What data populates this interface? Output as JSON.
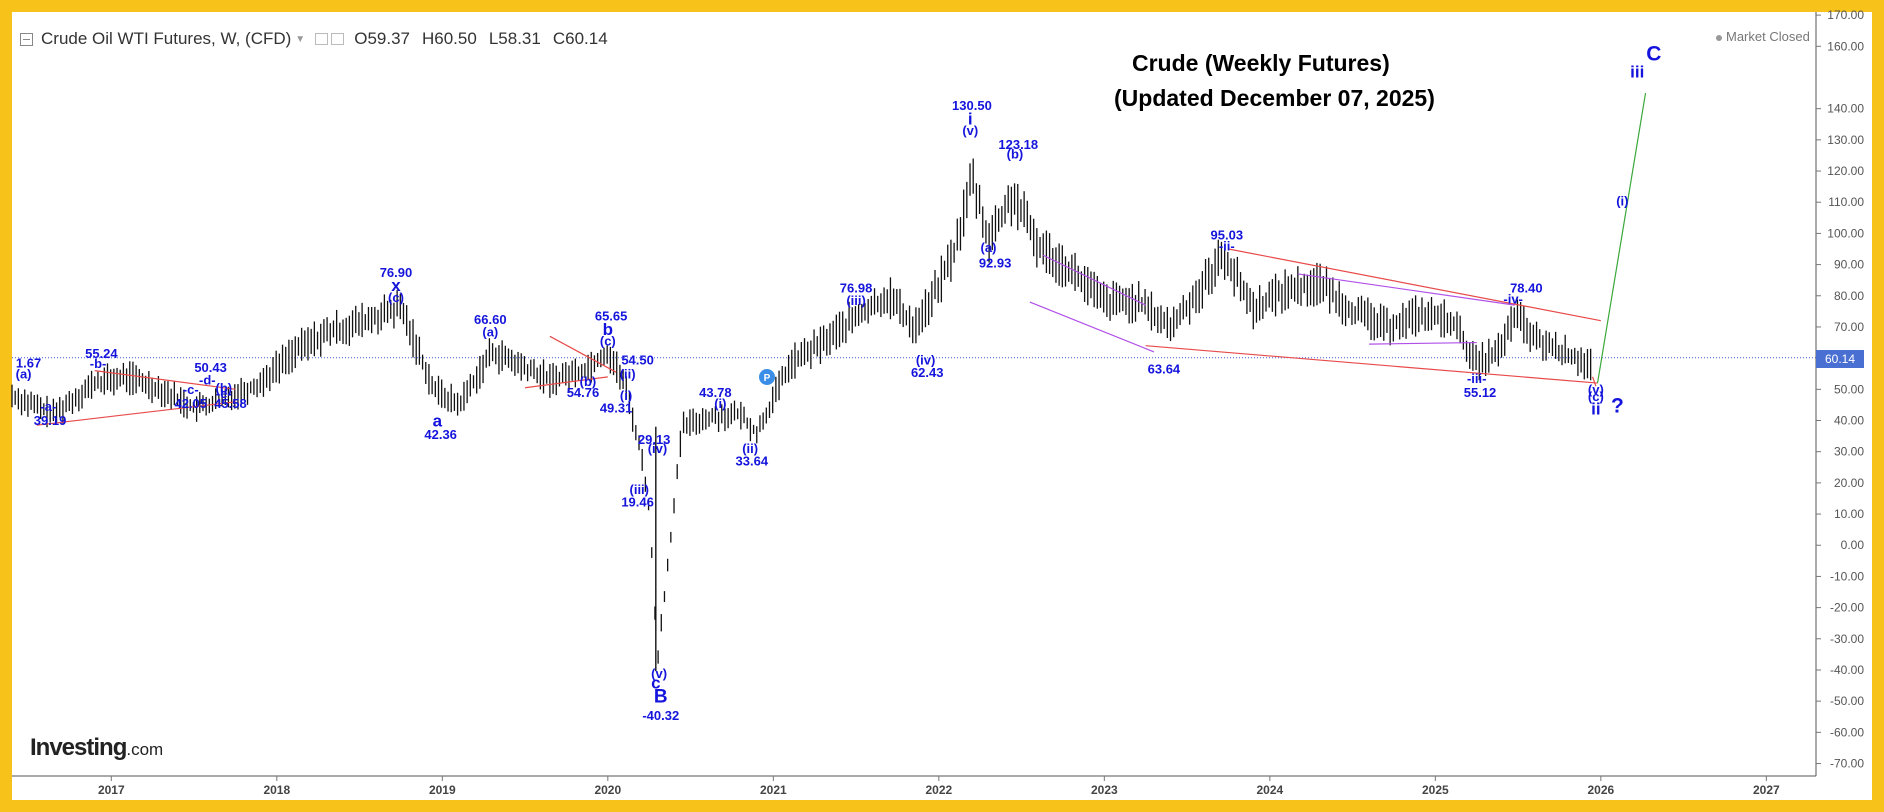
{
  "header": {
    "instrument": "Crude Oil WTI Futures, W, (CFD)",
    "open_label": "O",
    "open_value": "59.37",
    "high_label": "H",
    "high_value": "60.50",
    "low_label": "L",
    "low_value": "58.31",
    "close_label": "C",
    "close_value": "60.14",
    "market_status": "Market Closed"
  },
  "logo": {
    "brand": "Investing",
    "suffix": ".com"
  },
  "colors": {
    "frame": "#f7c21a",
    "wave_label": "#1414dc",
    "trendline": "#e84a4a",
    "channel": "#b050e8",
    "projection": "#3aa83a",
    "price_line": "#3b5bdb"
  },
  "current_price": "60.14",
  "chart_data": {
    "type": "line",
    "title": "Crude (Weekly Futures)",
    "subtitle": "(Updated December 07, 2025)",
    "xlabel": "",
    "ylabel": "",
    "xlim": [
      2016.4,
      2027.3
    ],
    "ylim": [
      -74,
      171
    ],
    "x_ticks": [
      "2017",
      "2018",
      "2019",
      "2020",
      "2021",
      "2022",
      "2023",
      "2024",
      "2025",
      "2026",
      "2027"
    ],
    "x_tick_values": [
      2017,
      2018,
      2019,
      2020,
      2021,
      2022,
      2023,
      2024,
      2025,
      2026,
      2027
    ],
    "y_ticks": [
      170,
      160,
      140,
      130,
      120,
      110,
      100,
      90,
      80,
      70,
      60,
      50,
      40,
      30,
      20,
      10,
      0,
      -10,
      -20,
      -30,
      -40,
      -50,
      -60,
      -70
    ],
    "y_tick_labels": [
      "170.00",
      "160.00",
      "140.00",
      "130.00",
      "120.00",
      "110.00",
      "100.00",
      "90.00",
      "80.00",
      "70.00",
      "60.00",
      "50.00",
      "40.00",
      "30.00",
      "20.00",
      "10.00",
      "0.00",
      "-10.00",
      "-20.00",
      "-30.00",
      "-40.00",
      "-50.00",
      "-60.00",
      "-70.00"
    ],
    "price_series": {
      "name": "Crude Oil WTI weekly",
      "x": [
        2016.4,
        2016.65,
        2016.9,
        2017.1,
        2017.3,
        2017.5,
        2017.65,
        2017.9,
        2018.1,
        2018.3,
        2018.55,
        2018.75,
        2018.95,
        2019.1,
        2019.3,
        2019.45,
        2019.65,
        2019.85,
        2020.0,
        2020.1,
        2020.2,
        2020.25,
        2020.3,
        2020.45,
        2020.6,
        2020.8,
        2020.9,
        2021.1,
        2021.3,
        2021.5,
        2021.7,
        2021.85,
        2021.95,
        2022.1,
        2022.2,
        2022.3,
        2022.45,
        2022.6,
        2022.8,
        2023.0,
        2023.2,
        2023.4,
        2023.55,
        2023.72,
        2023.9,
        2024.1,
        2024.3,
        2024.5,
        2024.7,
        2024.9,
        2025.1,
        2025.25,
        2025.4,
        2025.48,
        2025.6,
        2025.8,
        2025.95
      ],
      "y": [
        48,
        42,
        52,
        54,
        50,
        44,
        46,
        52,
        62,
        68,
        72,
        76,
        50,
        45,
        62,
        58,
        53,
        56,
        62,
        52,
        30,
        12,
        -37,
        38,
        41,
        42,
        36,
        58,
        65,
        73,
        80,
        70,
        78,
        95,
        118,
        98,
        112,
        96,
        88,
        78,
        78,
        70,
        80,
        93,
        76,
        82,
        84,
        75,
        70,
        74,
        72,
        58,
        63,
        74,
        66,
        61,
        58
      ]
    },
    "wave_labels": [
      {
        "text": "(a)",
        "x": 2016.47,
        "y": 53.5,
        "size": 13
      },
      {
        "text": "1.67",
        "x": 2016.5,
        "y": 57,
        "size": 13
      },
      {
        "text": "-a-",
        "x": 2016.62,
        "y": 43,
        "size": 13
      },
      {
        "text": "39.19",
        "x": 2016.63,
        "y": 38.5,
        "size": 13
      },
      {
        "text": "55.24",
        "x": 2016.94,
        "y": 60,
        "size": 13
      },
      {
        "text": "-b-",
        "x": 2016.92,
        "y": 56.8,
        "size": 13
      },
      {
        "text": "-c-",
        "x": 2017.48,
        "y": 48.5,
        "size": 13
      },
      {
        "text": "42.05",
        "x": 2017.48,
        "y": 44,
        "size": 13
      },
      {
        "text": "50.43",
        "x": 2017.6,
        "y": 55.5,
        "size": 13
      },
      {
        "text": "-d-",
        "x": 2017.58,
        "y": 51.5,
        "size": 13
      },
      {
        "text": "-e-",
        "x": 2017.68,
        "y": 47.2,
        "size": 13
      },
      {
        "text": "(b)",
        "x": 2017.68,
        "y": 49,
        "size": 13
      },
      {
        "text": "45.58",
        "x": 2017.72,
        "y": 44,
        "size": 13
      },
      {
        "text": "76.90",
        "x": 2018.72,
        "y": 86,
        "size": 13
      },
      {
        "text": "x",
        "x": 2018.72,
        "y": 81.5,
        "size": 17
      },
      {
        "text": "(c)",
        "x": 2018.72,
        "y": 78,
        "size": 13
      },
      {
        "text": "a",
        "x": 2018.97,
        "y": 38,
        "size": 17
      },
      {
        "text": "42.36",
        "x": 2018.99,
        "y": 34,
        "size": 13
      },
      {
        "text": "66.60",
        "x": 2019.29,
        "y": 71,
        "size": 13
      },
      {
        "text": "(a)",
        "x": 2019.29,
        "y": 67,
        "size": 13
      },
      {
        "text": "65.65",
        "x": 2020.02,
        "y": 72,
        "size": 13
      },
      {
        "text": "b",
        "x": 2020.0,
        "y": 67.5,
        "size": 17
      },
      {
        "text": "(c)",
        "x": 2020.0,
        "y": 64,
        "size": 13
      },
      {
        "text": "54.50",
        "x": 2020.18,
        "y": 58,
        "size": 13
      },
      {
        "text": "(b)",
        "x": 2019.88,
        "y": 51,
        "size": 13
      },
      {
        "text": "54.76",
        "x": 2019.85,
        "y": 47.5,
        "size": 13
      },
      {
        "text": "(ii)",
        "x": 2020.12,
        "y": 53.5,
        "size": 13
      },
      {
        "text": "(i)",
        "x": 2020.11,
        "y": 46.5,
        "size": 13
      },
      {
        "text": "49.31",
        "x": 2020.05,
        "y": 42.5,
        "size": 13
      },
      {
        "text": "29.13",
        "x": 2020.28,
        "y": 32.5,
        "size": 13
      },
      {
        "text": "(iv)",
        "x": 2020.3,
        "y": 29.5,
        "size": 13
      },
      {
        "text": "(iii)",
        "x": 2020.19,
        "y": 16.5,
        "size": 13
      },
      {
        "text": "19.46",
        "x": 2020.18,
        "y": 12.5,
        "size": 13
      },
      {
        "text": "(v)",
        "x": 2020.31,
        "y": -42.5,
        "size": 13
      },
      {
        "text": "c",
        "x": 2020.29,
        "y": -46,
        "size": 17
      },
      {
        "text": "B",
        "x": 2020.32,
        "y": -50.5,
        "size": 19
      },
      {
        "text": "-40.32",
        "x": 2020.32,
        "y": -56,
        "size": 13
      },
      {
        "text": "43.78",
        "x": 2020.65,
        "y": 47.5,
        "size": 13
      },
      {
        "text": "(i)",
        "x": 2020.68,
        "y": 44,
        "size": 13
      },
      {
        "text": "(ii)",
        "x": 2020.86,
        "y": 29.5,
        "size": 13
      },
      {
        "text": "33.64",
        "x": 2020.87,
        "y": 25.5,
        "size": 13
      },
      {
        "text": "76.98",
        "x": 2021.5,
        "y": 81,
        "size": 13
      },
      {
        "text": "(iii)",
        "x": 2021.5,
        "y": 77,
        "size": 13
      },
      {
        "text": "(iv)",
        "x": 2021.92,
        "y": 58,
        "size": 13
      },
      {
        "text": "62.43",
        "x": 2021.93,
        "y": 54,
        "size": 13
      },
      {
        "text": "130.50",
        "x": 2022.2,
        "y": 139.5,
        "size": 13
      },
      {
        "text": "i",
        "x": 2022.19,
        "y": 135,
        "size": 17
      },
      {
        "text": "(v)",
        "x": 2022.19,
        "y": 131.5,
        "size": 13
      },
      {
        "text": "123.18",
        "x": 2022.48,
        "y": 127,
        "size": 13
      },
      {
        "text": "(b)",
        "x": 2022.46,
        "y": 124,
        "size": 13
      },
      {
        "text": "(a)",
        "x": 2022.3,
        "y": 94,
        "size": 13
      },
      {
        "text": "92.93",
        "x": 2022.34,
        "y": 89,
        "size": 13
      },
      {
        "text": "63.64",
        "x": 2023.36,
        "y": 55,
        "size": 13
      },
      {
        "text": "95.03",
        "x": 2023.74,
        "y": 98,
        "size": 13
      },
      {
        "text": "-ii-",
        "x": 2023.74,
        "y": 94.5,
        "size": 13
      },
      {
        "text": "78.40",
        "x": 2025.55,
        "y": 81,
        "size": 13
      },
      {
        "text": "-iv-",
        "x": 2025.47,
        "y": 77.5,
        "size": 13
      },
      {
        "text": "-iii-",
        "x": 2025.25,
        "y": 52,
        "size": 13
      },
      {
        "text": "55.12",
        "x": 2025.27,
        "y": 47.5,
        "size": 13
      },
      {
        "text": "(v)",
        "x": 2025.97,
        "y": 48.5,
        "size": 13
      },
      {
        "text": "(c)",
        "x": 2025.97,
        "y": 46.2,
        "size": 13
      },
      {
        "text": "ii",
        "x": 2025.97,
        "y": 42,
        "size": 17
      },
      {
        "text": "?",
        "x": 2026.1,
        "y": 42.5,
        "size": 21
      },
      {
        "text": "(i)",
        "x": 2026.13,
        "y": 109,
        "size": 13
      },
      {
        "text": "iii",
        "x": 2026.22,
        "y": 150,
        "size": 17
      },
      {
        "text": "C",
        "x": 2026.32,
        "y": 155.5,
        "size": 21
      }
    ],
    "trendlines": [
      {
        "kind": "trend",
        "x1": 2016.55,
        "x2": 2017.75,
        "y1": 38.5,
        "y2": 46
      },
      {
        "kind": "trend",
        "x1": 2016.9,
        "x2": 2017.75,
        "y1": 56,
        "y2": 50
      },
      {
        "kind": "trend",
        "x1": 2019.5,
        "x2": 2020.0,
        "y1": 50.5,
        "y2": 54
      },
      {
        "kind": "trend",
        "x1": 2019.65,
        "x2": 2020.05,
        "y1": 67,
        "y2": 55.5
      },
      {
        "kind": "trend",
        "x1": 2023.25,
        "x2": 2025.98,
        "y1": 64,
        "y2": 52
      },
      {
        "kind": "trend",
        "x1": 2023.75,
        "x2": 2026.0,
        "y1": 95,
        "y2": 72
      },
      {
        "kind": "trend",
        "x1": 2025.95,
        "x2": 2025.97,
        "y1": 54,
        "y2": 51
      },
      {
        "kind": "channel",
        "x1": 2022.63,
        "x2": 2023.25,
        "y1": 93,
        "y2": 77
      },
      {
        "kind": "channel",
        "x1": 2022.55,
        "x2": 2023.3,
        "y1": 78,
        "y2": 62
      },
      {
        "kind": "channel",
        "x1": 2024.17,
        "x2": 2025.48,
        "y1": 87,
        "y2": 77
      },
      {
        "kind": "channel",
        "x1": 2024.6,
        "x2": 2025.25,
        "y1": 64.5,
        "y2": 65
      },
      {
        "kind": "projection",
        "x1": 2025.98,
        "x2": 2026.27,
        "y1": 52,
        "y2": 145
      }
    ]
  }
}
